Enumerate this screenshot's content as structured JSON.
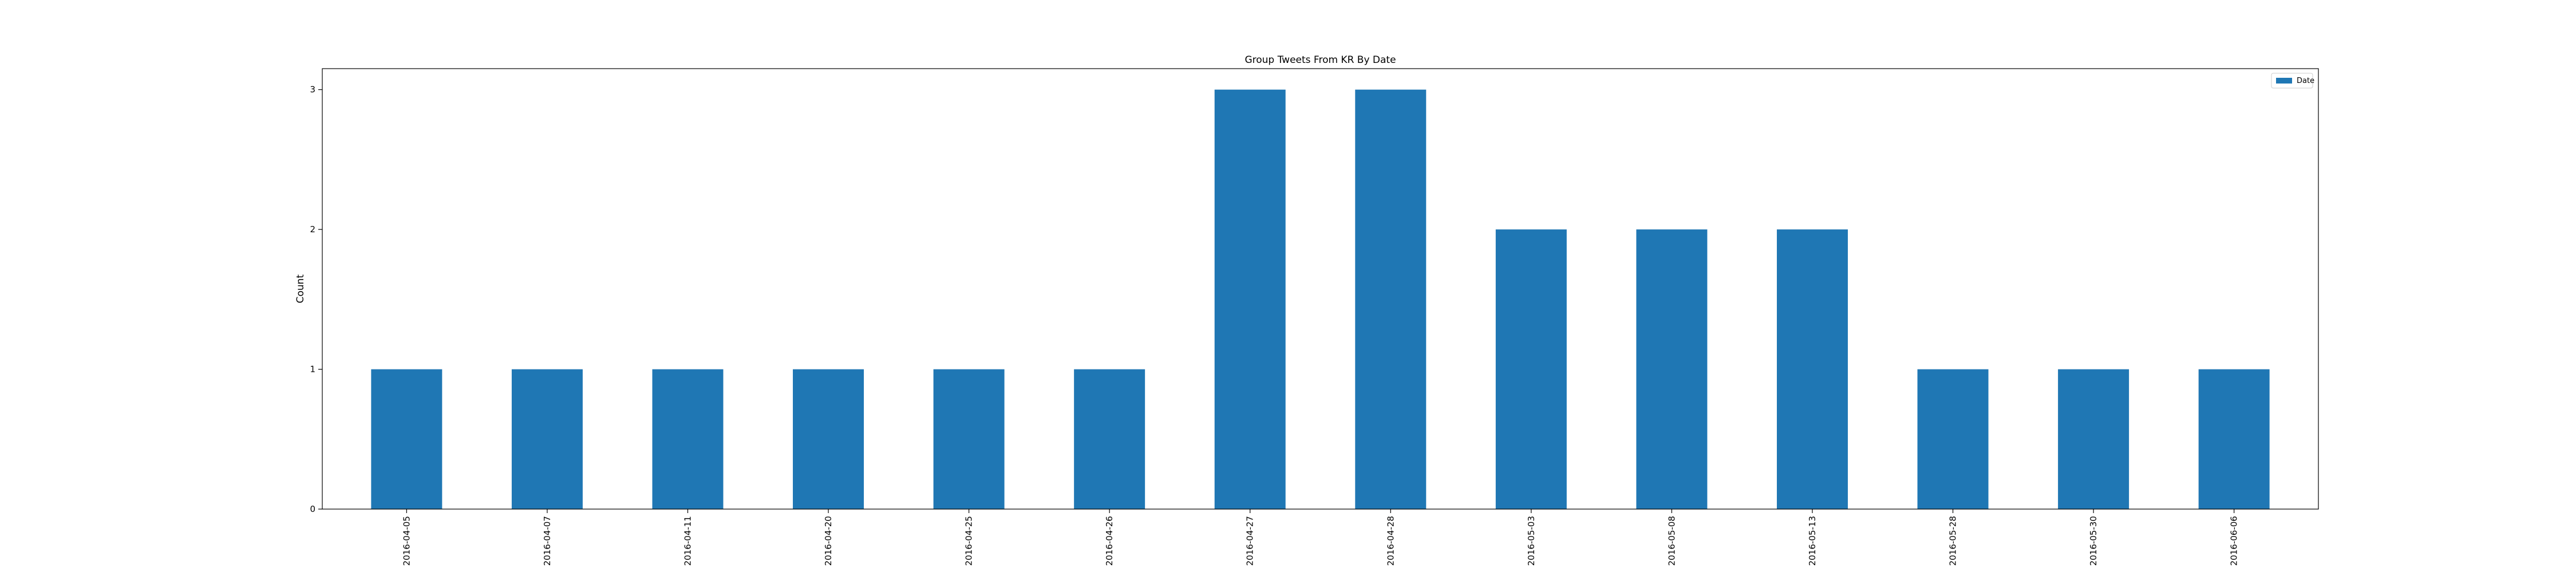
{
  "chart_data": {
    "type": "bar",
    "title": "Group Tweets From KR By Date",
    "xlabel": "",
    "ylabel": "Count",
    "categories": [
      "2016-04-05",
      "2016-04-07",
      "2016-04-11",
      "2016-04-20",
      "2016-04-25",
      "2016-04-26",
      "2016-04-27",
      "2016-04-28",
      "2016-05-03",
      "2016-05-08",
      "2016-05-13",
      "2016-05-28",
      "2016-05-30",
      "2016-06-06"
    ],
    "series": [
      {
        "name": "Date",
        "color": "#1f77b4",
        "values": [
          1,
          1,
          1,
          1,
          1,
          1,
          3,
          3,
          2,
          2,
          2,
          1,
          1,
          1
        ]
      }
    ],
    "ylim": [
      0,
      3.15
    ],
    "yticks": [
      0,
      1,
      2,
      3
    ],
    "grid": false,
    "legend_position": "top-right"
  }
}
